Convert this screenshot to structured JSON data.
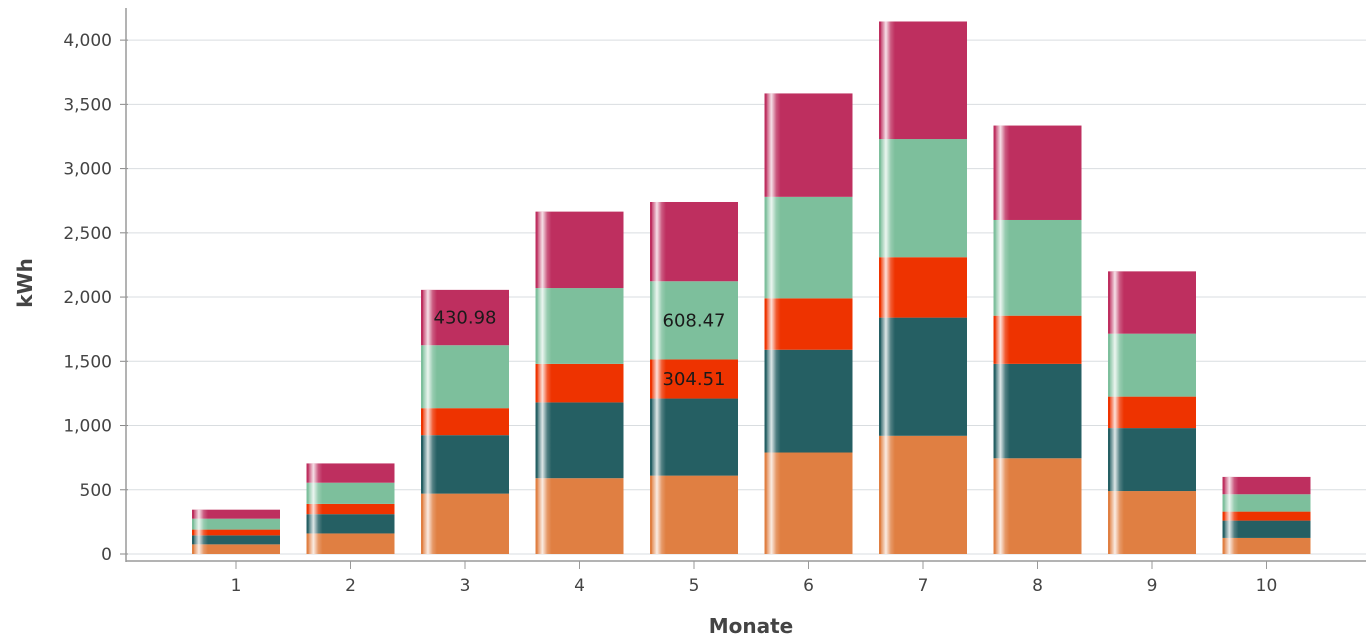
{
  "chart_data": {
    "type": "bar",
    "stacked": true,
    "title": "",
    "xlabel": "Monate",
    "ylabel": "kWh",
    "categories": [
      "1",
      "2",
      "3",
      "4",
      "5",
      "6",
      "7",
      "8",
      "9",
      "10"
    ],
    "ylim": [
      0,
      4250
    ],
    "yticks": [
      0,
      500,
      1000,
      1500,
      2000,
      2500,
      3000,
      3500,
      4000
    ],
    "ytick_labels": [
      "0",
      "500",
      "1,000",
      "1,500",
      "2,000",
      "2,500",
      "3,000",
      "3,500",
      "4,000"
    ],
    "grid": true,
    "series": [
      {
        "color": "#e07f42",
        "values": [
          75,
          160,
          470,
          590,
          610,
          790,
          920,
          745,
          490,
          125
        ]
      },
      {
        "color": "#255f63",
        "values": [
          70,
          150,
          455,
          590,
          600,
          800,
          920,
          735,
          490,
          135
        ]
      },
      {
        "color": "#ee3300",
        "values": [
          45,
          80,
          210,
          300,
          304.51,
          400,
          470,
          375,
          245,
          70
        ]
      },
      {
        "color": "#7dbf9c",
        "values": [
          85,
          165,
          490,
          590,
          608.47,
          790,
          920,
          745,
          490,
          135
        ]
      },
      {
        "color": "#be2f5f",
        "values": [
          70,
          150,
          430.98,
          595,
          617,
          805,
          915,
          735,
          485,
          135
        ]
      }
    ],
    "data_labels": [
      {
        "category": "3",
        "series": 4,
        "text": "430.98"
      },
      {
        "category": "5",
        "series": 3,
        "text": "608.47"
      },
      {
        "category": "5",
        "series": 2,
        "text": "304.51"
      }
    ]
  }
}
